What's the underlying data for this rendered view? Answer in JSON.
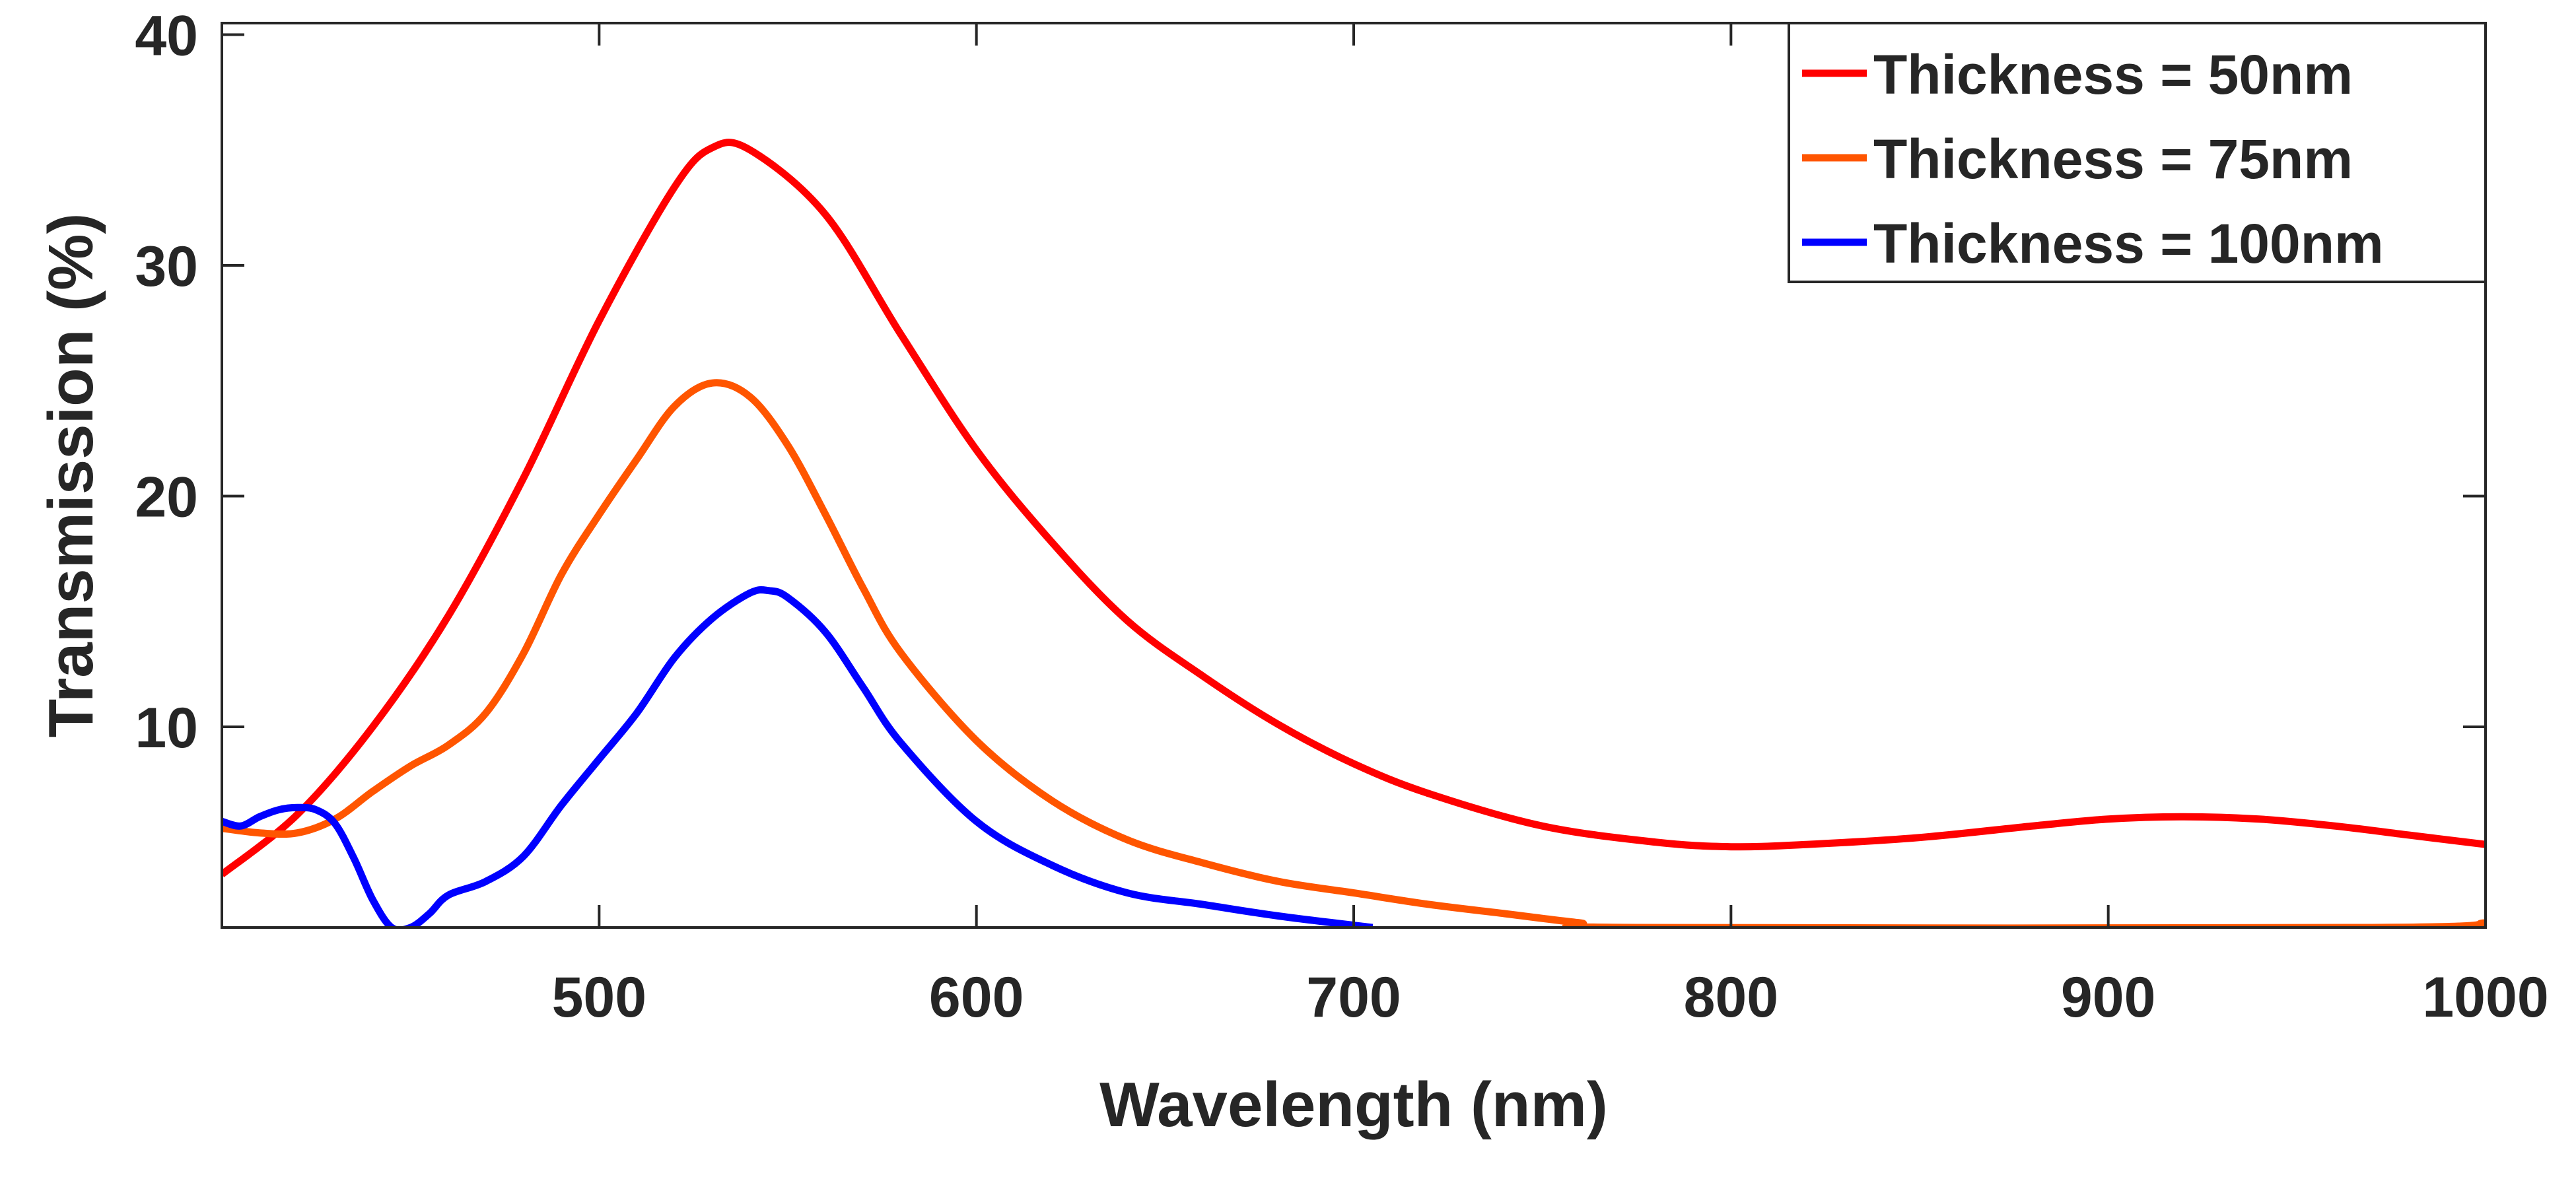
{
  "chart_data": {
    "type": "line",
    "title": "",
    "xlabel": "Wavelength (nm)",
    "ylabel": "Transmission (%)",
    "xlim": [
      400,
      1000
    ],
    "ylim": [
      1.3,
      40.5
    ],
    "x_ticks": [
      500,
      600,
      700,
      800,
      900,
      1000
    ],
    "y_ticks": [
      10,
      20,
      30,
      40
    ],
    "grid": false,
    "legend_position": "top-right",
    "series": [
      {
        "name": "Thickness = 50nm",
        "color": "#ff0000",
        "x": [
          400,
          420,
          440,
          460,
          480,
          500,
          520,
          530,
          540,
          560,
          580,
          600,
          620,
          640,
          660,
          680,
          700,
          720,
          750,
          780,
          800,
          820,
          850,
          880,
          900,
          920,
          940,
          960,
          980,
          1000
        ],
        "y": [
          3.6,
          6.2,
          10.0,
          14.8,
          20.8,
          27.6,
          33.4,
          35.1,
          35.0,
          32.2,
          27.0,
          22.0,
          18.0,
          14.6,
          12.2,
          10.1,
          8.4,
          7.1,
          5.7,
          5.0,
          4.8,
          4.9,
          5.2,
          5.7,
          6.0,
          6.1,
          6.0,
          5.7,
          5.3,
          4.9
        ]
      },
      {
        "name": "Thickness = 75nm",
        "color": "#ff5500",
        "x": [
          400,
          410,
          420,
          430,
          440,
          450,
          460,
          470,
          480,
          490,
          500,
          510,
          520,
          530,
          540,
          550,
          560,
          570,
          580,
          600,
          620,
          640,
          660,
          680,
          700,
          720,
          740,
          760,
          775,
          970,
          1000
        ],
        "y": [
          5.6,
          5.4,
          5.4,
          6.0,
          7.2,
          8.3,
          9.2,
          10.6,
          13.2,
          16.6,
          19.2,
          21.6,
          23.9,
          24.9,
          24.3,
          22.2,
          19.2,
          16.0,
          13.2,
          9.4,
          6.8,
          5.1,
          4.1,
          3.3,
          2.8,
          2.3,
          1.9,
          1.5,
          1.3,
          1.3,
          1.5
        ]
      },
      {
        "name": "Thickness = 100nm",
        "color": "#0000ff",
        "x": [
          400,
          405,
          410,
          415,
          420,
          425,
          430,
          435,
          440,
          445,
          450,
          455,
          460,
          470,
          480,
          490,
          500,
          510,
          520,
          530,
          540,
          545,
          550,
          560,
          570,
          580,
          600,
          620,
          640,
          660,
          680,
          705
        ],
        "y": [
          5.9,
          5.7,
          6.1,
          6.4,
          6.5,
          6.4,
          5.8,
          4.3,
          2.5,
          1.3,
          1.3,
          1.9,
          2.7,
          3.3,
          4.4,
          6.6,
          8.6,
          10.6,
          13.0,
          14.7,
          15.8,
          15.9,
          15.6,
          14.1,
          11.7,
          9.3,
          5.9,
          4.0,
          2.8,
          2.3,
          1.8,
          1.3
        ]
      }
    ]
  }
}
